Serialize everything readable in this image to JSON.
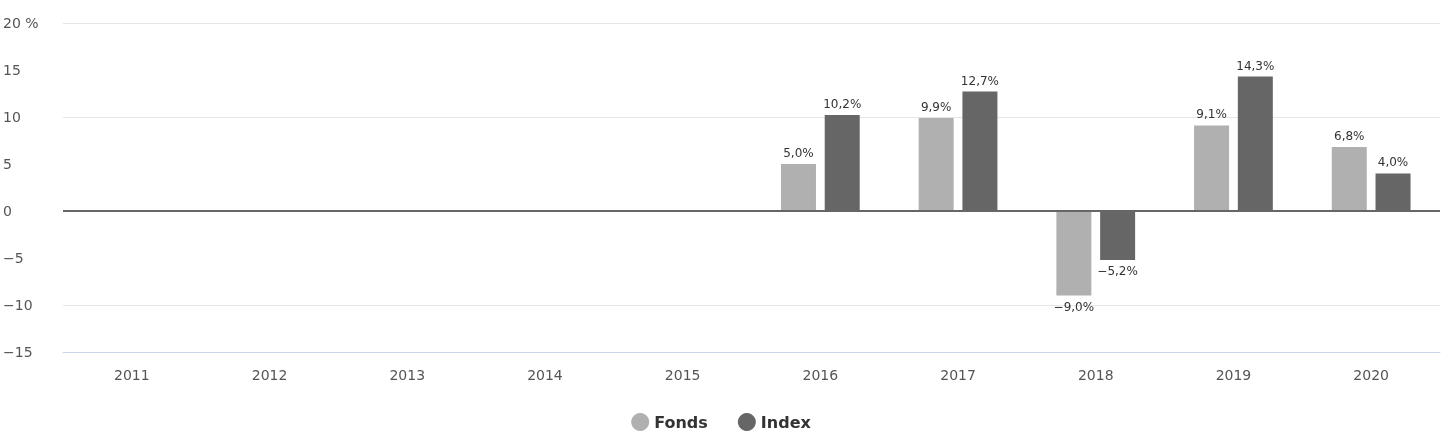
{
  "chart_data": {
    "type": "bar",
    "categories": [
      "2011",
      "2012",
      "2013",
      "2014",
      "2015",
      "2016",
      "2017",
      "2018",
      "2019",
      "2020"
    ],
    "series": [
      {
        "name": "Fonds",
        "color": "#b0b0b0",
        "values": [
          null,
          null,
          null,
          null,
          null,
          5.0,
          9.9,
          -9.0,
          9.1,
          6.8
        ],
        "value_labels": [
          null,
          null,
          null,
          null,
          null,
          "5,0%",
          "9,9%",
          "−9,0%",
          "9,1%",
          "6,8%"
        ]
      },
      {
        "name": "Index",
        "color": "#666666",
        "values": [
          null,
          null,
          null,
          null,
          null,
          10.2,
          12.7,
          -5.2,
          14.3,
          4.0
        ],
        "value_labels": [
          null,
          null,
          null,
          null,
          null,
          "10,2%",
          "12,7%",
          "−5,2%",
          "14,3%",
          "4,0%"
        ]
      }
    ],
    "ylim": [
      -15,
      20
    ],
    "yticks": [
      {
        "value": -15,
        "label": "−15"
      },
      {
        "value": -10,
        "label": "−10"
      },
      {
        "value": -5,
        "label": "−5"
      },
      0,
      5,
      10,
      15,
      {
        "value": 20,
        "label": "20 %"
      }
    ],
    "ref_lines": [
      {
        "axis": "y",
        "value": 0,
        "label": null,
        "color": "#666666"
      }
    ],
    "grid": "y",
    "legend": "bottom"
  }
}
